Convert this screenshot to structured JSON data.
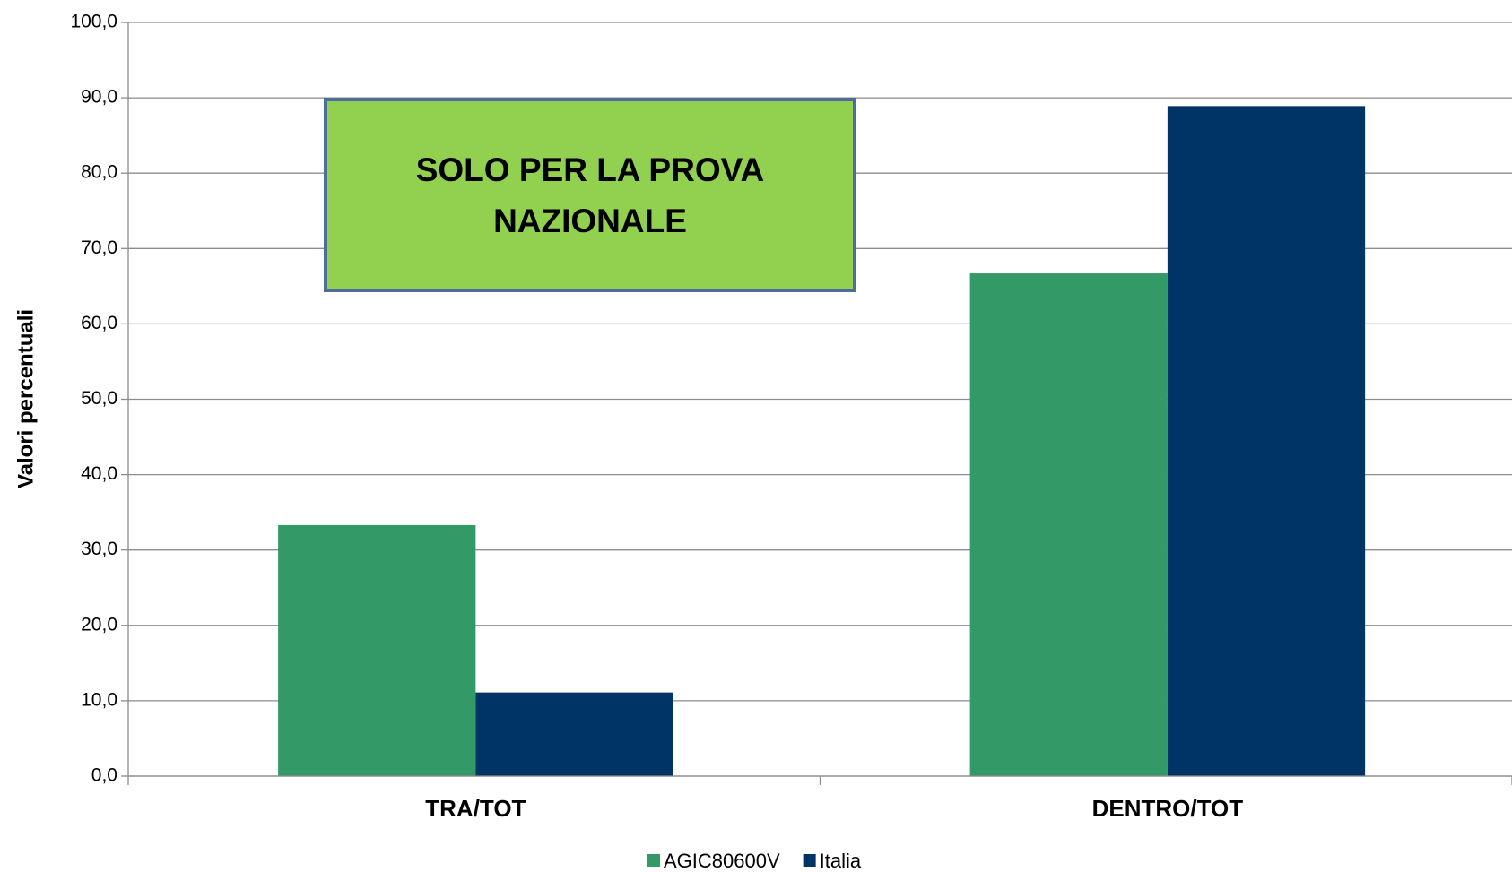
{
  "chart_data": {
    "type": "bar",
    "y_label": "Valori percentuali",
    "annotation": [
      "SOLO PER LA PROVA",
      "NAZIONALE"
    ],
    "categories": [
      "TRA/TOT",
      "DENTRO/TOT"
    ],
    "series": [
      {
        "name": "AGIC80600V",
        "color": "#339966",
        "values": [
          33.3,
          66.7
        ]
      },
      {
        "name": "Italia",
        "color": "#003366",
        "values": [
          11.1,
          88.9
        ]
      }
    ],
    "ylim": [
      0,
      100
    ],
    "yticks": [
      {
        "value": 0,
        "label": "0,0"
      },
      {
        "value": 10,
        "label": "10,0"
      },
      {
        "value": 20,
        "label": "20,0"
      },
      {
        "value": 30,
        "label": "30,0"
      },
      {
        "value": 40,
        "label": "40,0"
      },
      {
        "value": 50,
        "label": "50,0"
      },
      {
        "value": 60,
        "label": "60,0"
      },
      {
        "value": 70,
        "label": "70,0"
      },
      {
        "value": 80,
        "label": "80,0"
      },
      {
        "value": 90,
        "label": "90,0"
      },
      {
        "value": 100,
        "label": "100,0"
      }
    ],
    "grid": true,
    "legend": "bottom"
  }
}
